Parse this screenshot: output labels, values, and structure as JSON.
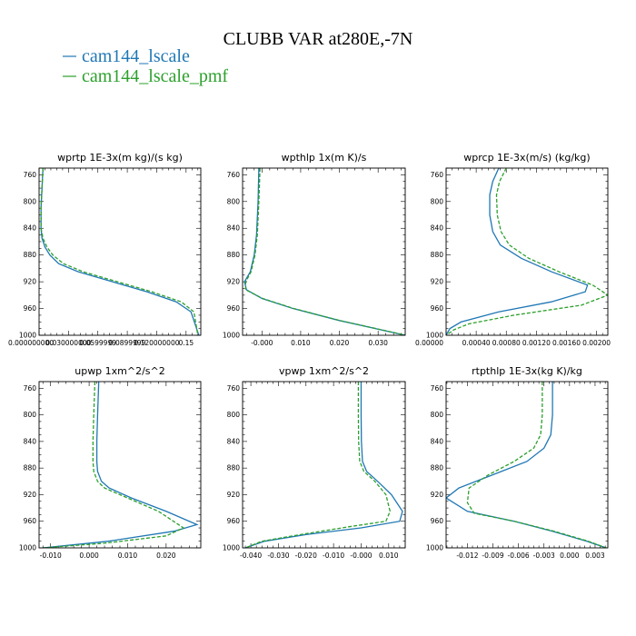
{
  "figure": {
    "title": "CLUBB VAR at280E,-7N",
    "legend": [
      {
        "label": "cam144_lscale",
        "color": "#1f77b4",
        "dash": "solid"
      },
      {
        "label": "cam144_lscale_pmf",
        "color": "#2ca02c",
        "dash": "dashed"
      }
    ],
    "y_axis": {
      "label": "",
      "range": [
        1000,
        750
      ],
      "ticks": [
        760,
        800,
        840,
        880,
        920,
        960,
        1000
      ]
    }
  },
  "chart_data": [
    {
      "type": "line",
      "title": "wprtp  1E-3x(m kg)/(s kg)",
      "xlim": [
        0.0,
        0.165
      ],
      "xticks": [
        0.0,
        0.03,
        0.06,
        0.09,
        0.12,
        0.15
      ],
      "xtick_labels": [
        "0.000000000",
        "0.030000000",
        "0.0599999",
        "0.0899999",
        "0.120000000",
        "0.15"
      ],
      "series": [
        {
          "name": "cam144_lscale",
          "x": [
            0.004,
            0.003,
            0.002,
            0.002,
            0.003,
            0.006,
            0.011,
            0.02,
            0.04,
            0.075,
            0.11,
            0.14,
            0.155,
            0.163
          ],
          "y": [
            750,
            780,
            810,
            840,
            855,
            868,
            880,
            893,
            905,
            920,
            935,
            950,
            965,
            1000
          ]
        },
        {
          "name": "cam144_lscale_pmf",
          "x": [
            0.004,
            0.003,
            0.002,
            0.002,
            0.004,
            0.008,
            0.014,
            0.025,
            0.045,
            0.08,
            0.115,
            0.145,
            0.158,
            0.162
          ],
          "y": [
            750,
            780,
            810,
            840,
            855,
            868,
            880,
            893,
            905,
            920,
            935,
            950,
            965,
            1000
          ]
        }
      ]
    },
    {
      "type": "line",
      "title": "wpthlp  1x(m K)/s",
      "xlim": [
        -0.005,
        0.037
      ],
      "xticks": [
        0.0,
        0.01,
        0.02,
        0.03
      ],
      "xtick_labels": [
        "-0.000",
        "0.010",
        "0.020",
        "0.030"
      ],
      "series": [
        {
          "name": "cam144_lscale",
          "x": [
            -0.0008,
            -0.001,
            -0.0014,
            -0.002,
            -0.003,
            -0.0045,
            -0.004,
            0.0,
            0.008,
            0.02,
            0.037
          ],
          "y": [
            750,
            800,
            850,
            880,
            905,
            920,
            932,
            945,
            960,
            978,
            1000
          ]
        },
        {
          "name": "cam144_lscale_pmf",
          "x": [
            -0.0005,
            -0.0008,
            -0.0012,
            -0.0018,
            -0.0028,
            -0.0042,
            -0.0042,
            0.0002,
            0.0082,
            0.0202,
            0.0372
          ],
          "y": [
            750,
            800,
            850,
            880,
            905,
            920,
            932,
            945,
            960,
            978,
            1000
          ]
        }
      ]
    },
    {
      "type": "line",
      "title": "wprcp  1E-3x(m/s) (kg/kg)",
      "xlim": [
        0.0,
        0.00215
      ],
      "xticks": [
        0.0,
        0.0004,
        0.0008,
        0.0012,
        0.0016,
        0.002
      ],
      "xtick_labels": [
        "0.00000",
        "0.00040",
        "0.00080",
        "0.00120",
        "0.00160",
        "0.00200"
      ],
      "series": [
        {
          "name": "cam144_lscale",
          "x": [
            0.0007,
            0.00062,
            0.00058,
            0.00058,
            0.00062,
            0.00072,
            0.001,
            0.0014,
            0.00188,
            0.00185,
            0.0014,
            0.0007,
            0.0002,
            5e-05,
            0.0
          ],
          "y": [
            750,
            770,
            790,
            820,
            845,
            865,
            885,
            905,
            925,
            935,
            950,
            965,
            980,
            990,
            1000
          ]
        },
        {
          "name": "cam144_lscale_pmf",
          "x": [
            0.0008,
            0.00071,
            0.00067,
            0.00068,
            0.00073,
            0.00084,
            0.0011,
            0.0015,
            0.00195,
            0.00215,
            0.0018,
            0.0009,
            0.0003,
            0.0001,
            0.0
          ],
          "y": [
            750,
            770,
            790,
            820,
            845,
            865,
            885,
            905,
            925,
            940,
            955,
            970,
            983,
            992,
            1000
          ]
        }
      ]
    },
    {
      "type": "line",
      "title": "upwp  1xm^2/s^2",
      "xlim": [
        -0.013,
        0.029
      ],
      "xticks": [
        -0.01,
        0.0,
        0.01,
        0.02
      ],
      "xtick_labels": [
        "-0.010",
        "0.000",
        "0.010",
        "0.020"
      ],
      "series": [
        {
          "name": "cam144_lscale",
          "x": [
            0.0025,
            0.0022,
            0.002,
            0.002,
            0.0022,
            0.0032,
            0.0052,
            0.011,
            0.02,
            0.028,
            0.022,
            0.005,
            -0.012
          ],
          "y": [
            750,
            800,
            840,
            870,
            885,
            900,
            910,
            925,
            945,
            965,
            975,
            990,
            1000
          ]
        },
        {
          "name": "cam144_lscale_pmf",
          "x": [
            0.0015,
            0.0012,
            0.001,
            0.001,
            0.0012,
            0.0022,
            0.004,
            0.01,
            0.018,
            0.0245,
            0.02,
            0.004,
            -0.012
          ],
          "y": [
            750,
            800,
            840,
            870,
            885,
            900,
            910,
            925,
            945,
            970,
            982,
            993,
            1000
          ]
        }
      ]
    },
    {
      "type": "line",
      "title": "vpwp  1xm^2/s^2",
      "xlim": [
        -0.043,
        0.016
      ],
      "xticks": [
        -0.04,
        -0.03,
        -0.02,
        -0.01,
        0.0,
        0.01
      ],
      "xtick_labels": [
        "-0.040",
        "-0.030",
        "-0.020",
        "-0.010",
        "-0.000",
        "0.010"
      ],
      "series": [
        {
          "name": "cam144_lscale",
          "x": [
            0.0,
            0.0,
            0.0001,
            0.0005,
            0.002,
            0.006,
            0.011,
            0.015,
            0.014,
            0.0,
            -0.02,
            -0.035,
            -0.042
          ],
          "y": [
            750,
            800,
            840,
            870,
            885,
            900,
            920,
            945,
            960,
            970,
            980,
            990,
            1000
          ]
        },
        {
          "name": "cam144_lscale_pmf",
          "x": [
            -0.001,
            -0.001,
            -0.0009,
            -0.0005,
            0.001,
            0.005,
            0.009,
            0.0105,
            0.009,
            -0.004,
            -0.022,
            -0.036,
            -0.042
          ],
          "y": [
            750,
            800,
            840,
            870,
            885,
            900,
            920,
            945,
            960,
            968,
            980,
            990,
            1000
          ]
        }
      ]
    },
    {
      "type": "line",
      "title": "rtpthlp  1E-3x(kg K)/kg",
      "xlim": [
        -0.0145,
        0.0045
      ],
      "xticks": [
        -0.012,
        -0.009,
        -0.006,
        -0.003,
        0.0,
        0.003
      ],
      "xtick_labels": [
        "-0.012",
        "-0.009",
        "-0.006",
        "-0.003",
        "0.000",
        "0.003"
      ],
      "series": [
        {
          "name": "cam144_lscale",
          "x": [
            -0.002,
            -0.002,
            -0.0022,
            -0.003,
            -0.005,
            -0.009,
            -0.013,
            -0.0145,
            -0.012,
            -0.0065,
            -0.002,
            0.002,
            0.0043
          ],
          "y": [
            750,
            800,
            830,
            850,
            870,
            890,
            910,
            925,
            945,
            960,
            975,
            990,
            1000
          ]
        },
        {
          "name": "cam144_lscale_pmf",
          "x": [
            -0.0032,
            -0.0032,
            -0.0034,
            -0.0042,
            -0.0065,
            -0.0095,
            -0.0118,
            -0.012,
            -0.0112,
            -0.0065,
            -0.0018,
            0.0022,
            0.0043
          ],
          "y": [
            750,
            800,
            830,
            850,
            870,
            890,
            910,
            932,
            948,
            960,
            975,
            990,
            1000
          ]
        }
      ]
    }
  ]
}
